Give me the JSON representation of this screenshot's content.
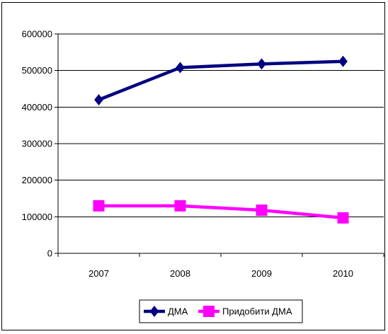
{
  "chart_data": {
    "type": "line",
    "categories": [
      "2007",
      "2008",
      "2009",
      "2010"
    ],
    "ylim": [
      0,
      600000
    ],
    "yticks": [
      0,
      100000,
      200000,
      300000,
      400000,
      500000,
      600000
    ],
    "ytick_labels": [
      "0",
      "100000",
      "200000",
      "300000",
      "400000",
      "500000",
      "600000"
    ],
    "grid": "horizontal",
    "legend_position": "bottom",
    "series": [
      {
        "name": "ДМА",
        "color": "#000080",
        "marker": "diamond",
        "values": [
          420000,
          508000,
          518000,
          525000
        ]
      },
      {
        "name": "Придобити ДМА",
        "color": "#FF00FF",
        "marker": "square",
        "values": [
          130000,
          130000,
          118000,
          97000
        ]
      }
    ]
  }
}
